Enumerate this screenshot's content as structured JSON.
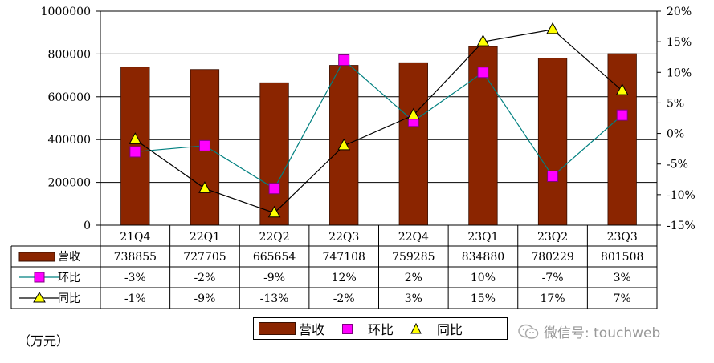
{
  "chart_data": {
    "type": "bar",
    "categories": [
      "21Q4",
      "22Q1",
      "22Q2",
      "22Q3",
      "22Q4",
      "23Q1",
      "23Q2",
      "23Q3"
    ],
    "series": [
      {
        "name": "营收",
        "type": "bar",
        "axis": "left",
        "values": [
          738855,
          727705,
          665654,
          747108,
          759285,
          834880,
          780229,
          801508
        ],
        "color": "#8B2500"
      },
      {
        "name": "环比",
        "type": "line",
        "axis": "right",
        "marker": "square",
        "values": [
          -3,
          -2,
          -9,
          12,
          2,
          10,
          -7,
          3
        ],
        "color": "#008080",
        "marker_color": "#FF00FF"
      },
      {
        "name": "同比",
        "type": "line",
        "axis": "right",
        "marker": "triangle",
        "values": [
          -1,
          -9,
          -13,
          -2,
          3,
          15,
          17,
          7
        ],
        "color": "#000000",
        "marker_color": "#FFFF00"
      }
    ],
    "y_left": {
      "ticks": [
        "1000000",
        "800000",
        "600000",
        "400000",
        "200000",
        "0"
      ],
      "ylim": [
        0,
        1000000
      ]
    },
    "y_right": {
      "ticks": [
        "20%",
        "15%",
        "10%",
        "5%",
        "0%",
        "-5%",
        "-10%",
        "-15%"
      ],
      "ylim": [
        -15,
        20
      ]
    },
    "table": {
      "rows": [
        {
          "label": "营收",
          "cells": [
            "738855",
            "727705",
            "665654",
            "747108",
            "759285",
            "834880",
            "780229",
            "801508"
          ]
        },
        {
          "label": "环比",
          "cells": [
            "-3%",
            "-2%",
            "-9%",
            "12%",
            "2%",
            "10%",
            "-7%",
            "3%"
          ]
        },
        {
          "label": "同比",
          "cells": [
            "-1%",
            "-9%",
            "-13%",
            "-2%",
            "3%",
            "15%",
            "17%",
            "7%"
          ]
        }
      ]
    },
    "grid": true,
    "legend": "bottom",
    "unit_label": "（万元）"
  },
  "legend": {
    "revenue": "营收",
    "qoq": "环比",
    "yoy": "同比"
  },
  "watermark": {
    "text": "微信号: touchweb",
    "icon": "wechat-icon"
  }
}
